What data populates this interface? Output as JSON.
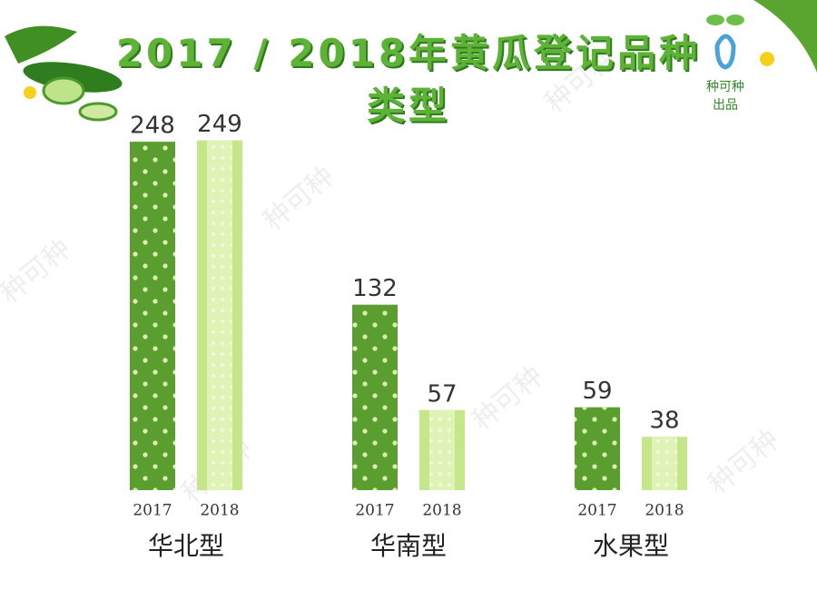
{
  "chart_data": {
    "type": "bar",
    "title": "2017 / 2018年黄瓜登记品种类型",
    "logo": [
      "种可种",
      "出品"
    ],
    "watermark": "种可种",
    "categories": [
      "华北型",
      "华南型",
      "水果型"
    ],
    "series": [
      {
        "name": "2017",
        "color": "#5a9e2f",
        "values": [
          248,
          132,
          59
        ]
      },
      {
        "name": "2018",
        "color": "#c6e68a",
        "values": [
          249,
          57,
          38
        ]
      }
    ],
    "ylim": [
      0,
      250
    ]
  }
}
